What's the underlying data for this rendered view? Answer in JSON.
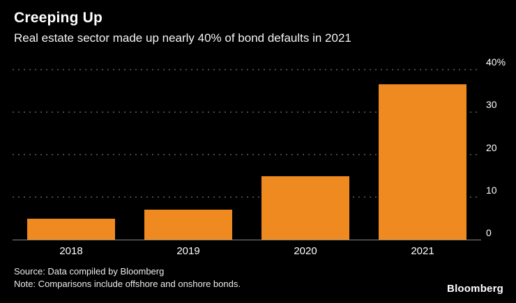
{
  "header": {
    "title": "Creeping Up",
    "subtitle": "Real estate sector made up nearly 40% of bond defaults in 2021"
  },
  "chart_data": {
    "type": "bar",
    "title": "Creeping Up",
    "subtitle": "Real estate sector made up nearly 40% of bond defaults in 2021",
    "categories": [
      "2018",
      "2019",
      "2020",
      "2021"
    ],
    "values": [
      5,
      7,
      15,
      36.5
    ],
    "xlabel": "",
    "ylabel": "",
    "ylim": [
      0,
      40
    ],
    "yticks": [
      0,
      10,
      20,
      30,
      40
    ],
    "ytick_labels": [
      "0",
      "10",
      "20",
      "30",
      "40%"
    ],
    "y_axis_side": "right",
    "grid": "horizontal-dotted",
    "legend_position": "none",
    "bar_color": "#EE8A1F"
  },
  "footer": {
    "source": "Source: Data compiled by Bloomberg",
    "note": "Note: Comparisons include offshore and onshore bonds.",
    "brand": "Bloomberg"
  },
  "colors": {
    "background": "#000000",
    "bar": "#EE8A1F",
    "gridline": "#4a4a4a",
    "axis_line": "#8a8a8a",
    "text": "#ffffff"
  }
}
